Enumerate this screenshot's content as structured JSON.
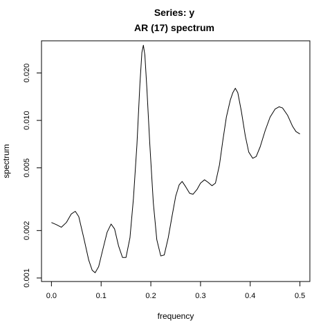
{
  "chart_data": {
    "type": "line",
    "title": "Series: y",
    "subtitle": "AR (17) spectrum",
    "xlabel": "frequency",
    "ylabel": "spectrum",
    "y_scale": "log",
    "xlim": [
      -0.02,
      0.52
    ],
    "ylim": [
      0.00095,
      0.032
    ],
    "x_ticks": [
      {
        "value": 0.0,
        "label": "0.0"
      },
      {
        "value": 0.1,
        "label": "0.1"
      },
      {
        "value": 0.2,
        "label": "0.2"
      },
      {
        "value": 0.3,
        "label": "0.3"
      },
      {
        "value": 0.4,
        "label": "0.4"
      },
      {
        "value": 0.5,
        "label": "0.5"
      }
    ],
    "y_ticks": [
      {
        "value": 0.001,
        "label": "0.001"
      },
      {
        "value": 0.002,
        "label": "0.002"
      },
      {
        "value": 0.005,
        "label": "0.005"
      },
      {
        "value": 0.01,
        "label": "0.010"
      },
      {
        "value": 0.02,
        "label": "0.020"
      }
    ],
    "grid": false,
    "series": [
      {
        "color": "#000000",
        "points": [
          [
            0.0,
            0.00225
          ],
          [
            0.01,
            0.00218
          ],
          [
            0.02,
            0.0021
          ],
          [
            0.03,
            0.00225
          ],
          [
            0.04,
            0.00255
          ],
          [
            0.048,
            0.00265
          ],
          [
            0.055,
            0.00245
          ],
          [
            0.065,
            0.0018
          ],
          [
            0.075,
            0.0013
          ],
          [
            0.082,
            0.00112
          ],
          [
            0.088,
            0.00108
          ],
          [
            0.095,
            0.00118
          ],
          [
            0.103,
            0.0015
          ],
          [
            0.112,
            0.00195
          ],
          [
            0.12,
            0.0022
          ],
          [
            0.127,
            0.00205
          ],
          [
            0.135,
            0.0016
          ],
          [
            0.143,
            0.00135
          ],
          [
            0.15,
            0.00135
          ],
          [
            0.158,
            0.0018
          ],
          [
            0.165,
            0.0032
          ],
          [
            0.172,
            0.007
          ],
          [
            0.178,
            0.017
          ],
          [
            0.182,
            0.027
          ],
          [
            0.185,
            0.03
          ],
          [
            0.188,
            0.026
          ],
          [
            0.192,
            0.016
          ],
          [
            0.198,
            0.007
          ],
          [
            0.205,
            0.003
          ],
          [
            0.212,
            0.00175
          ],
          [
            0.22,
            0.00138
          ],
          [
            0.227,
            0.0014
          ],
          [
            0.235,
            0.0018
          ],
          [
            0.243,
            0.0025
          ],
          [
            0.25,
            0.0033
          ],
          [
            0.257,
            0.0039
          ],
          [
            0.263,
            0.0041
          ],
          [
            0.27,
            0.0038
          ],
          [
            0.278,
            0.00345
          ],
          [
            0.285,
            0.0034
          ],
          [
            0.293,
            0.00365
          ],
          [
            0.3,
            0.004
          ],
          [
            0.308,
            0.0042
          ],
          [
            0.315,
            0.00405
          ],
          [
            0.323,
            0.00385
          ],
          [
            0.33,
            0.004
          ],
          [
            0.338,
            0.0052
          ],
          [
            0.345,
            0.0075
          ],
          [
            0.352,
            0.0105
          ],
          [
            0.36,
            0.0135
          ],
          [
            0.365,
            0.015
          ],
          [
            0.37,
            0.016
          ],
          [
            0.375,
            0.015
          ],
          [
            0.382,
            0.0115
          ],
          [
            0.39,
            0.008
          ],
          [
            0.397,
            0.0063
          ],
          [
            0.405,
            0.00575
          ],
          [
            0.412,
            0.0059
          ],
          [
            0.42,
            0.0068
          ],
          [
            0.43,
            0.0086
          ],
          [
            0.44,
            0.0105
          ],
          [
            0.45,
            0.0118
          ],
          [
            0.458,
            0.0122
          ],
          [
            0.465,
            0.012
          ],
          [
            0.475,
            0.0108
          ],
          [
            0.485,
            0.0092
          ],
          [
            0.492,
            0.0085
          ],
          [
            0.5,
            0.0082
          ]
        ]
      }
    ]
  }
}
